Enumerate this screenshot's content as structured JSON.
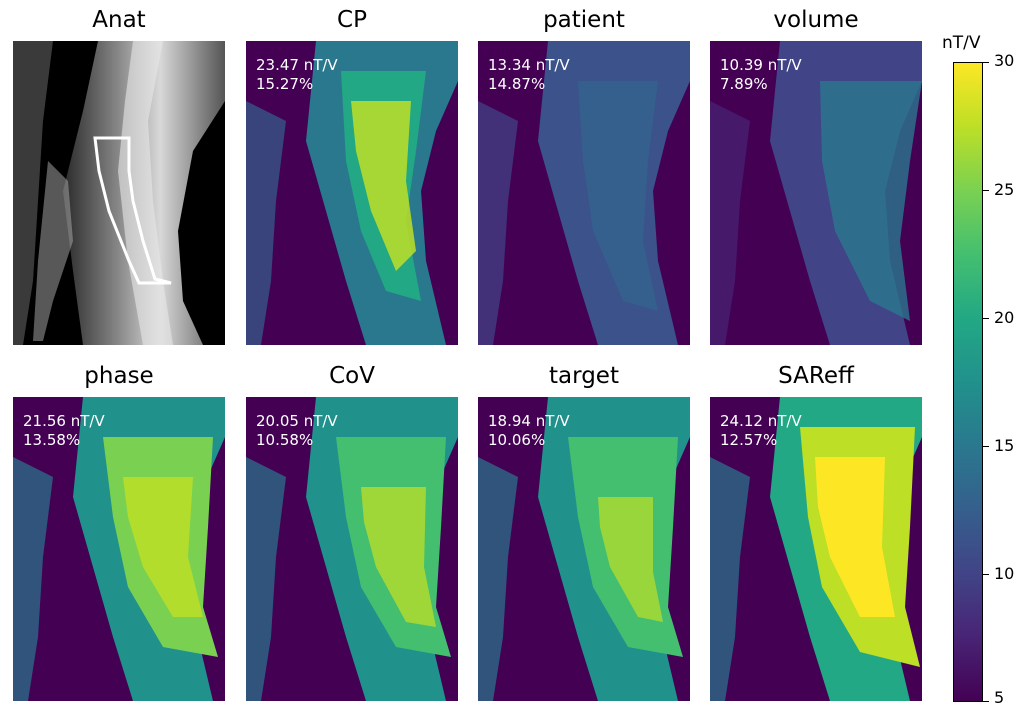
{
  "panels": [
    {
      "title": "Anat",
      "line1": "",
      "line2": ""
    },
    {
      "title": "CP",
      "line1": "23.47 nT/V",
      "line2": "15.27%"
    },
    {
      "title": "patient",
      "line1": "13.34 nT/V",
      "line2": "14.87%"
    },
    {
      "title": "volume",
      "line1": "10.39 nT/V",
      "line2": "7.89%"
    },
    {
      "title": "phase",
      "line1": "21.56 nT/V",
      "line2": "13.58%"
    },
    {
      "title": "CoV",
      "line1": "20.05 nT/V",
      "line2": "10.58%"
    },
    {
      "title": "target",
      "line1": "18.94 nT/V",
      "line2": "10.06%"
    },
    {
      "title": "SAReff",
      "line1": "24.12 nT/V",
      "line2": "12.57%"
    }
  ],
  "colorbar": {
    "unit": "nT/V",
    "min": 5,
    "max": 30,
    "ticks": [
      "30",
      "25",
      "20",
      "15",
      "10",
      "5"
    ],
    "colormap": "viridis"
  },
  "colors": {
    "background_map": "#440154",
    "high": "#fde725",
    "mid": "#21918c",
    "roi_outline": "#ffffff"
  }
}
